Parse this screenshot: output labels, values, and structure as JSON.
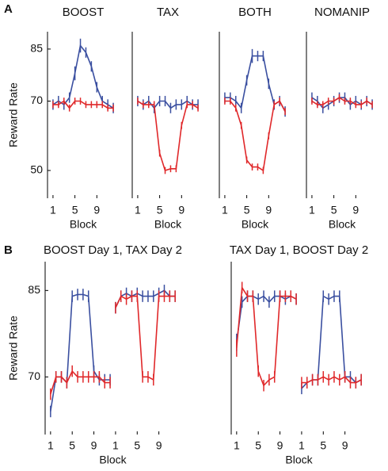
{
  "panel_labels": [
    "A",
    "B"
  ],
  "chart_data": [
    {
      "type": "line",
      "title": "BOOST",
      "xlabel": "Block",
      "ylabel": "Reward Rate",
      "x": [
        1,
        2,
        3,
        4,
        5,
        6,
        7,
        8,
        9,
        10,
        11,
        12
      ],
      "xlim": [
        0,
        13
      ],
      "xticks": [
        1,
        5,
        9
      ],
      "ylim": [
        42,
        90
      ],
      "yticks": [
        50,
        70,
        85
      ],
      "series": [
        {
          "color": "#3a4fa0",
          "values": [
            69,
            70,
            69,
            71,
            78,
            86,
            84,
            80,
            74,
            70,
            69,
            68
          ],
          "errors": [
            1.5,
            1.5,
            1.5,
            1.5,
            2,
            2,
            1.5,
            1.5,
            1.5,
            1.5,
            1.5,
            1.5
          ]
        },
        {
          "color": "#e0282a",
          "values": [
            69,
            69,
            70,
            68,
            70,
            70,
            69,
            69,
            69,
            69,
            68,
            68
          ],
          "errors": [
            1,
            1,
            1,
            1,
            1,
            1,
            1,
            1,
            1,
            1,
            1,
            1
          ]
        }
      ]
    },
    {
      "type": "line",
      "title": "TAX",
      "xlabel": "Block",
      "x": [
        1,
        2,
        3,
        4,
        5,
        6,
        7,
        8,
        9,
        10,
        11,
        12
      ],
      "xlim": [
        0,
        13
      ],
      "xticks": [
        1,
        5,
        9
      ],
      "ylim": [
        42,
        90
      ],
      "series": [
        {
          "color": "#3a4fa0",
          "values": [
            70,
            69,
            70,
            68,
            70,
            70,
            68,
            69,
            69,
            70,
            69,
            69
          ],
          "errors": [
            1.5,
            1.5,
            1.5,
            1.5,
            1.5,
            1.5,
            1.5,
            1.5,
            1.5,
            1.5,
            1.5,
            1.5
          ]
        },
        {
          "color": "#e0282a",
          "values": [
            70,
            69,
            69,
            69,
            55,
            50,
            50.5,
            50.5,
            63,
            69,
            69,
            68
          ],
          "errors": [
            1,
            1,
            1,
            1,
            1,
            1,
            1,
            1,
            1,
            1,
            1,
            1
          ]
        }
      ]
    },
    {
      "type": "line",
      "title": "BOTH",
      "xlabel": "Block",
      "x": [
        1,
        2,
        3,
        4,
        5,
        6,
        7,
        8,
        9,
        10,
        11,
        12
      ],
      "xlim": [
        0,
        13
      ],
      "xticks": [
        1,
        5,
        9
      ],
      "ylim": [
        42,
        90
      ],
      "series": [
        {
          "color": "#3a4fa0",
          "values": [
            71,
            71,
            70,
            68,
            76,
            83,
            83,
            83,
            75,
            69,
            70,
            67
          ],
          "errors": [
            1.5,
            1.5,
            1.5,
            1.5,
            1.5,
            2,
            1.5,
            1.5,
            1.5,
            1.5,
            1.5,
            1.5
          ]
        },
        {
          "color": "#e0282a",
          "values": [
            70,
            70,
            68,
            63,
            53,
            51,
            51,
            50,
            60,
            69,
            70,
            67
          ],
          "errors": [
            1,
            1,
            1,
            1,
            1,
            1,
            1,
            1,
            1,
            1,
            1,
            1
          ]
        }
      ]
    },
    {
      "type": "line",
      "title": "NOMANIP",
      "xlabel": "Block",
      "x": [
        1,
        2,
        3,
        4,
        5,
        6,
        7,
        8,
        9,
        10,
        11,
        12
      ],
      "xlim": [
        0,
        13
      ],
      "xticks": [
        1,
        5,
        9
      ],
      "ylim": [
        42,
        90
      ],
      "series": [
        {
          "color": "#3a4fa0",
          "values": [
            71,
            70,
            68,
            69,
            70,
            71,
            71,
            69,
            70,
            69,
            70,
            69
          ],
          "errors": [
            1.5,
            1.5,
            1.5,
            1.5,
            1.5,
            1.5,
            1.5,
            1.5,
            1.5,
            1.5,
            1.5,
            1.5
          ]
        },
        {
          "color": "#e0282a",
          "values": [
            70,
            69,
            69,
            70,
            70,
            71,
            70,
            70,
            69,
            69,
            70,
            69
          ],
          "errors": [
            1,
            1,
            1,
            1,
            1,
            1,
            1,
            1,
            1,
            1,
            1,
            1
          ]
        }
      ]
    },
    {
      "type": "line",
      "title": "BOOST Day 1,  TAX Day 2",
      "xlabel": "Block",
      "ylabel": "Reward Rate",
      "xlim": [
        0,
        25
      ],
      "xticks": [
        1,
        5,
        9,
        {
          "value": 13,
          "label": "1"
        },
        {
          "value": 17,
          "label": "5"
        },
        {
          "value": 21,
          "label": "9"
        }
      ],
      "ylim": [
        60,
        90
      ],
      "yticks": [
        70,
        85
      ],
      "series": [
        {
          "color": "#3a4fa0",
          "x": [
            1,
            2,
            3,
            4,
            5,
            6,
            7,
            8,
            9,
            10,
            11,
            12
          ],
          "values": [
            64,
            70,
            70,
            69,
            84,
            84.3,
            84.3,
            84,
            71,
            69.5,
            69.5,
            69.5
          ],
          "errors": [
            1,
            1,
            1,
            1,
            1,
            1,
            1,
            1,
            1,
            1,
            1,
            1
          ]
        },
        {
          "color": "#e0282a",
          "x": [
            1,
            2,
            3,
            4,
            5,
            6,
            7,
            8,
            9,
            10,
            11,
            12
          ],
          "values": [
            67,
            70,
            70,
            69,
            71,
            70,
            70,
            70,
            70,
            70,
            69,
            69
          ],
          "errors": [
            1,
            1,
            1,
            1,
            1,
            1,
            1,
            1,
            1,
            1,
            1,
            1
          ]
        },
        {
          "color": "#3a4fa0",
          "x": [
            13,
            14,
            15,
            16,
            17,
            18,
            19,
            20,
            21,
            22,
            23,
            24
          ],
          "values": [
            82,
            84,
            84.5,
            84,
            84.5,
            84,
            84,
            84,
            84.5,
            85,
            84,
            84
          ],
          "errors": [
            1,
            1,
            1,
            1,
            1,
            1,
            1,
            1,
            1,
            1,
            1,
            1
          ]
        },
        {
          "color": "#e0282a",
          "x": [
            13,
            14,
            15,
            16,
            17,
            18,
            19,
            20,
            21,
            22,
            23,
            24
          ],
          "values": [
            82,
            84,
            83.5,
            84,
            84,
            70,
            70,
            69.5,
            84,
            84,
            84,
            84
          ],
          "errors": [
            1,
            1,
            1,
            1,
            1,
            1,
            1,
            1,
            1,
            1,
            1,
            1
          ]
        }
      ]
    },
    {
      "type": "line",
      "title": "TAX Day 1,  BOOST Day 2",
      "xlabel": "Block",
      "xlim": [
        0,
        25
      ],
      "xticks": [
        1,
        5,
        9,
        {
          "value": 13,
          "label": "1"
        },
        {
          "value": 17,
          "label": "5"
        },
        {
          "value": 21,
          "label": "9"
        }
      ],
      "ylim": [
        60,
        90
      ],
      "series": [
        {
          "color": "#3a4fa0",
          "x": [
            1,
            2,
            3,
            4,
            5,
            6,
            7,
            8,
            9,
            10,
            11,
            12
          ],
          "values": [
            76,
            83,
            84,
            84,
            83.5,
            84,
            83,
            84,
            84,
            83.5,
            84,
            83.5
          ],
          "errors": [
            1.5,
            1,
            1,
            1,
            1,
            1,
            1,
            1,
            1,
            1,
            1,
            1
          ]
        },
        {
          "color": "#e0282a",
          "x": [
            1,
            2,
            3,
            4,
            5,
            6,
            7,
            8,
            9,
            10,
            11,
            12
          ],
          "values": [
            75,
            85.5,
            84,
            84,
            71,
            68.5,
            69.5,
            70,
            84,
            84,
            84,
            83.5
          ],
          "errors": [
            1.5,
            1,
            1,
            1,
            1,
            1,
            1,
            1,
            1,
            1,
            1,
            1
          ]
        },
        {
          "color": "#3a4fa0",
          "x": [
            13,
            14,
            15,
            16,
            17,
            18,
            19,
            20,
            21,
            22,
            23,
            24
          ],
          "values": [
            68,
            69,
            69.5,
            69.5,
            84,
            83.5,
            84,
            84,
            70,
            70,
            69,
            69.5
          ],
          "errors": [
            1,
            1,
            1,
            1,
            1,
            1,
            1,
            1,
            1,
            1,
            1,
            1
          ]
        },
        {
          "color": "#e0282a",
          "x": [
            13,
            14,
            15,
            16,
            17,
            18,
            19,
            20,
            21,
            22,
            23,
            24
          ],
          "values": [
            69,
            69,
            69.5,
            69.5,
            70,
            69.5,
            70,
            69.5,
            70,
            69,
            69,
            69.5
          ],
          "errors": [
            1,
            1,
            1,
            1,
            1,
            1,
            1,
            1,
            1,
            1,
            1,
            1
          ]
        }
      ]
    }
  ]
}
